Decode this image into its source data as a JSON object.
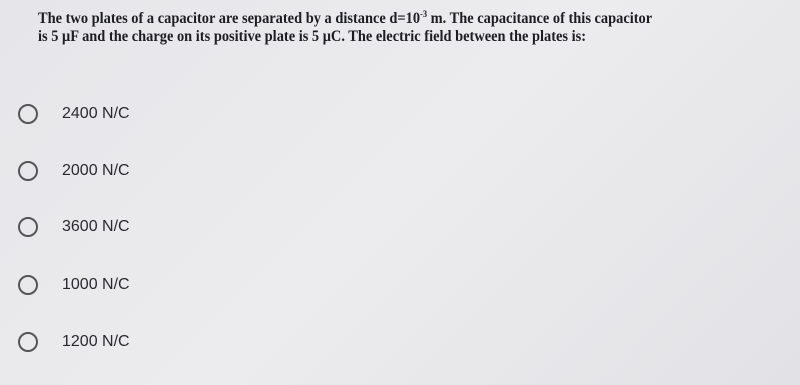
{
  "question": {
    "line1_before": "The two plates of a capacitor are separated by a distance d=10",
    "exponent": "-3",
    "line1_after": " m. The capacitance of this capacitor",
    "line2": "is 5 μF and the charge on its positive plate is 5 μC. The electric field between the plates is:"
  },
  "options": [
    "2400 N/C",
    "2000 N/C",
    "3600 N/C",
    "1000 N/C",
    "1200 N/C"
  ]
}
